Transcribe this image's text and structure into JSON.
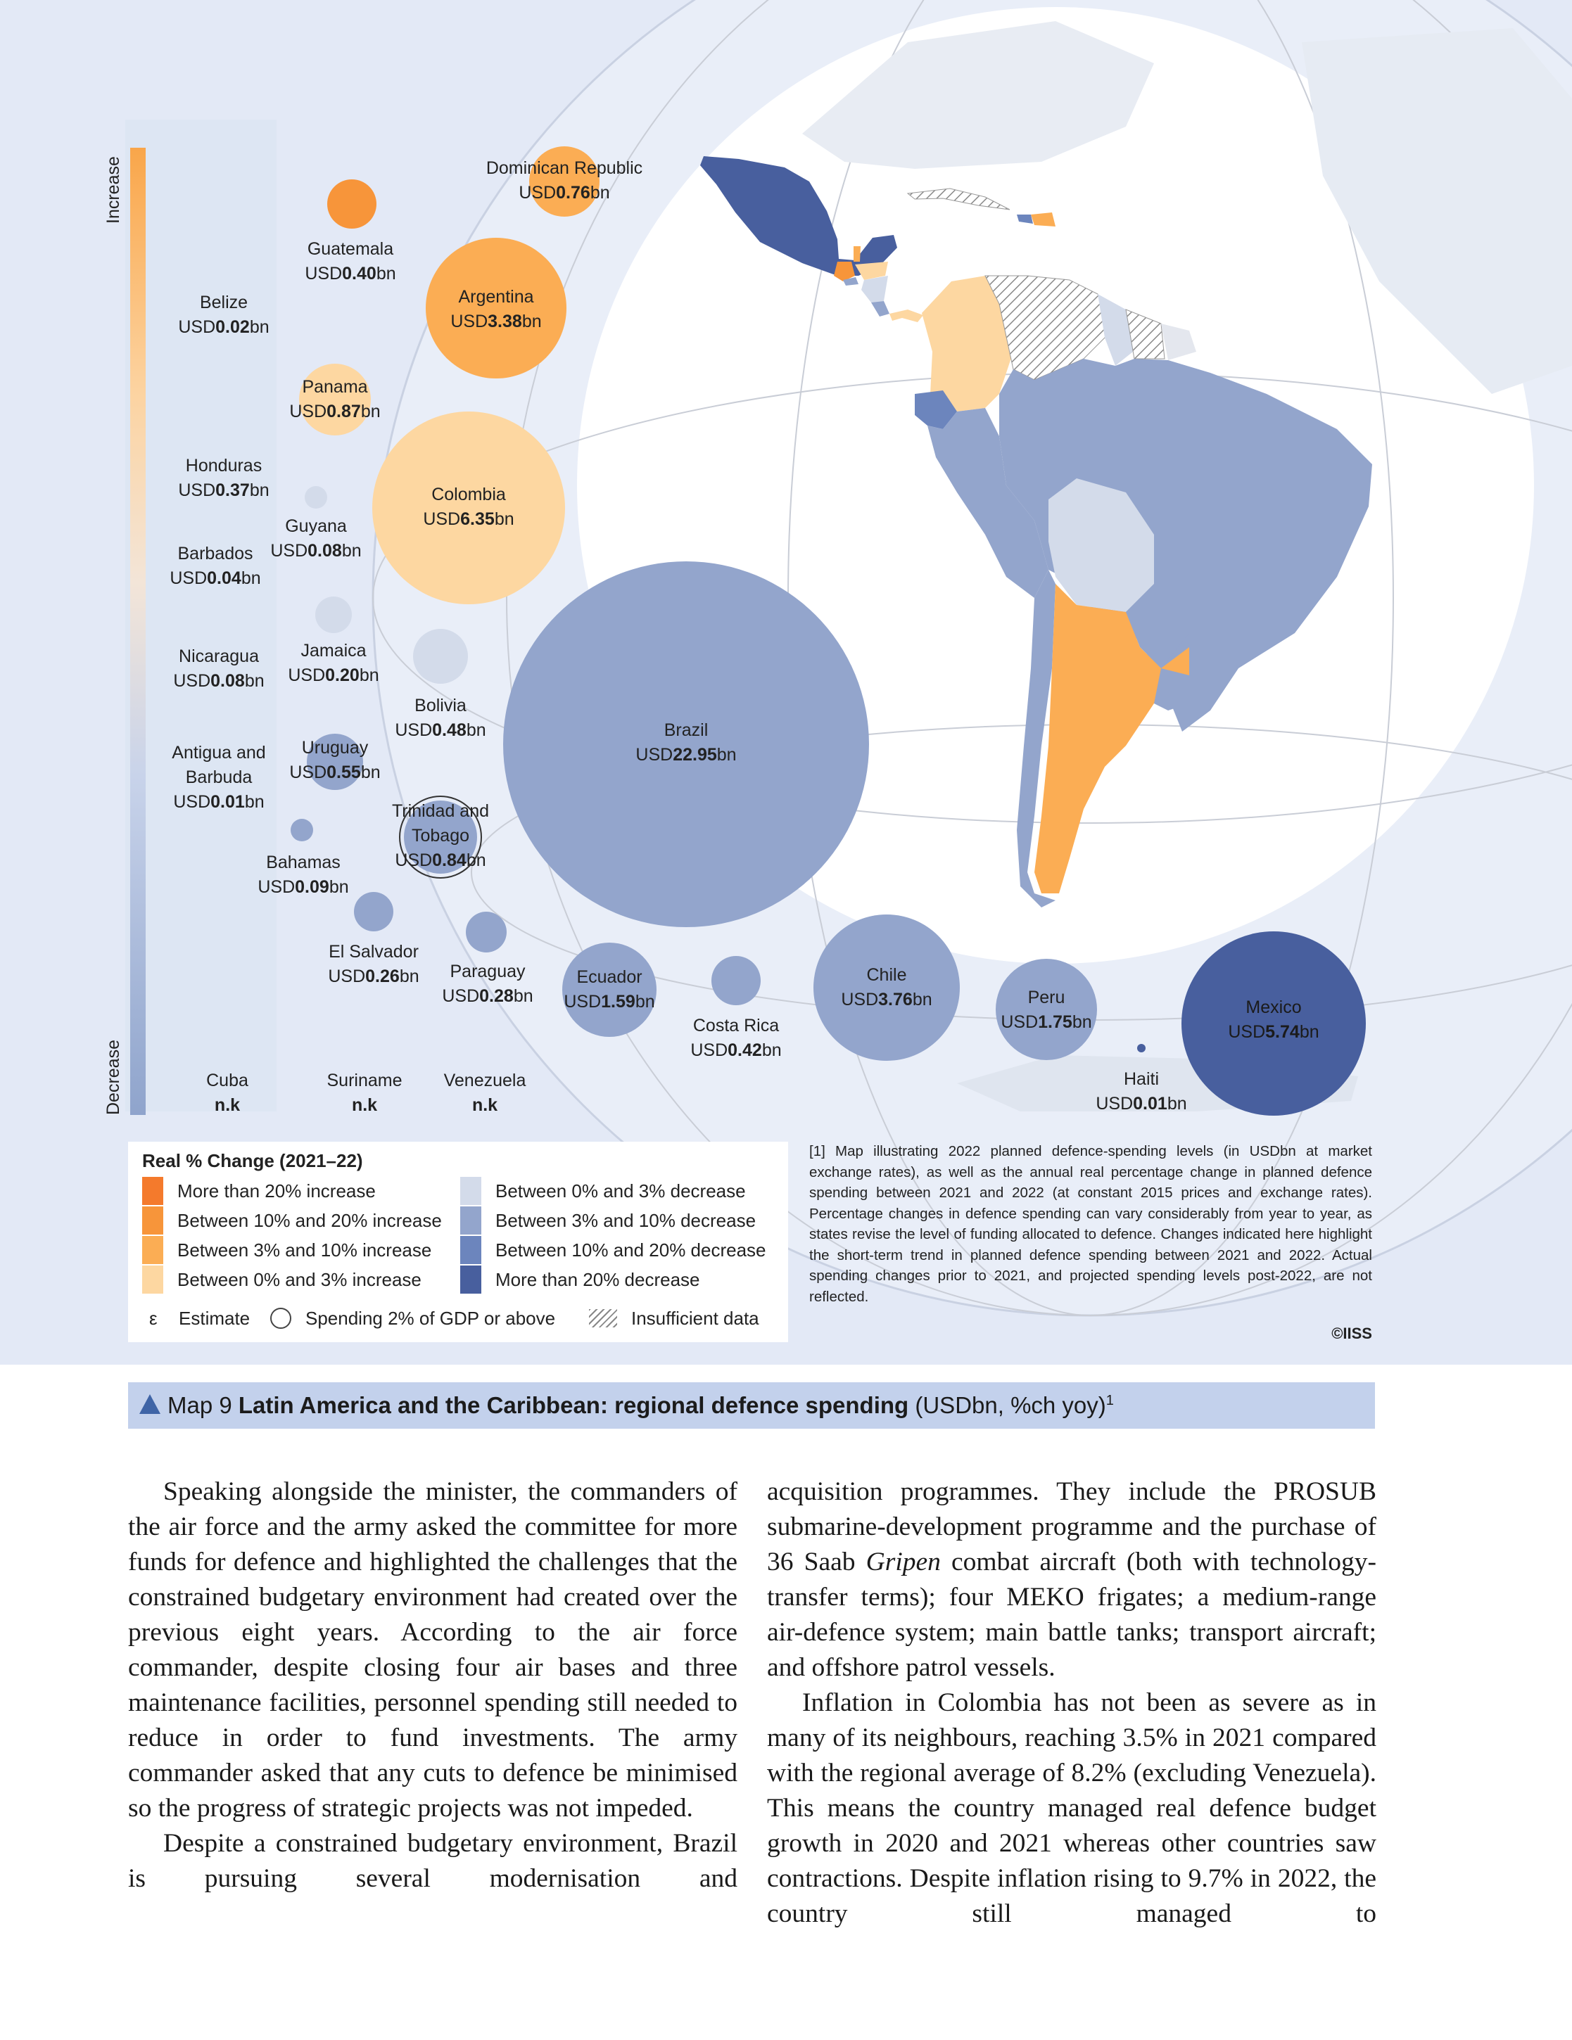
{
  "scale": {
    "increase_label": "Increase",
    "decrease_label": "Decrease"
  },
  "colors": {
    "inc_gt20": "#f47a2c",
    "inc_10_20": "#f7953a",
    "inc_3_10": "#fbad54",
    "inc_0_3": "#fdd7a1",
    "dec_0_3": "#d3dbea",
    "dec_3_10": "#93a5cc",
    "dec_10_20": "#6c85bd",
    "dec_gt20": "#485f9e",
    "background": "#e3e9f6",
    "caption_bar": "#c3d1ec"
  },
  "chart_data": {
    "type": "bubble-map",
    "title": "Latin America and the Caribbean: regional defence spending",
    "units": "USDbn, %ch yoy",
    "countries": [
      {
        "name": "Dominican Republic",
        "prefix": "USD",
        "value": "0.76",
        "unit": "bn",
        "category": "inc_3_10"
      },
      {
        "name": "Guatemala",
        "prefix": "USD",
        "value": "0.40",
        "unit": "bn",
        "category": "inc_10_20"
      },
      {
        "name": "Argentina",
        "prefix": "USD",
        "value": "3.38",
        "unit": "bn",
        "category": "inc_3_10"
      },
      {
        "name": "Belize",
        "prefix": "USD",
        "value": "0.02",
        "unit": "bn",
        "category": "inc_3_10"
      },
      {
        "name": "Panama",
        "prefix": "USD",
        "value": "0.87",
        "unit": "bn",
        "category": "inc_0_3"
      },
      {
        "name": "Honduras",
        "prefix": "USD",
        "value": "0.37",
        "unit": "bn",
        "category": "inc_0_3"
      },
      {
        "name": "Colombia",
        "prefix": "USD",
        "value": "6.35",
        "unit": "bn",
        "category": "inc_0_3"
      },
      {
        "name": "Guyana",
        "prefix": "USD",
        "value": "0.08",
        "unit": "bn",
        "category": "dec_0_3"
      },
      {
        "name": "Barbados",
        "prefix": "USD",
        "value": "0.04",
        "unit": "bn",
        "category": "dec_0_3"
      },
      {
        "name": "Jamaica",
        "prefix": "USD",
        "value": "0.20",
        "unit": "bn",
        "category": "dec_0_3"
      },
      {
        "name": "Nicaragua",
        "prefix": "USD",
        "value": "0.08",
        "unit": "bn",
        "category": "dec_0_3"
      },
      {
        "name": "Bolivia",
        "prefix": "USD",
        "value": "0.48",
        "unit": "bn",
        "category": "dec_0_3"
      },
      {
        "name": "Brazil",
        "prefix": "USD",
        "value": "22.95",
        "unit": "bn",
        "category": "dec_3_10"
      },
      {
        "name": "Antigua and Barbuda",
        "prefix": "USD",
        "value": "0.01",
        "unit": "bn",
        "category": "dec_3_10"
      },
      {
        "name": "Uruguay",
        "prefix": "USD",
        "value": "0.55",
        "unit": "bn",
        "category": "dec_3_10"
      },
      {
        "name": "Trinidad and Tobago",
        "prefix": "USD",
        "value": "0.84",
        "unit": "bn",
        "category": "dec_3_10",
        "gdp2pct": true
      },
      {
        "name": "Bahamas",
        "prefix": "USD",
        "value": "0.09",
        "unit": "bn",
        "category": "dec_3_10"
      },
      {
        "name": "El Salvador",
        "prefix": "USD",
        "value": "0.26",
        "unit": "bn",
        "category": "dec_3_10"
      },
      {
        "name": "Paraguay",
        "prefix": "USD",
        "value": "0.28",
        "unit": "bn",
        "category": "dec_3_10"
      },
      {
        "name": "Ecuador",
        "prefix": "USD",
        "value": "1.59",
        "unit": "bn",
        "category": "dec_3_10"
      },
      {
        "name": "Costa Rica",
        "prefix": "USD",
        "value": "0.42",
        "unit": "bn",
        "category": "dec_3_10"
      },
      {
        "name": "Chile",
        "prefix": "USD",
        "value": "3.76",
        "unit": "bn",
        "category": "dec_3_10"
      },
      {
        "name": "Peru",
        "prefix": "USD",
        "value": "1.75",
        "unit": "bn",
        "category": "dec_3_10"
      },
      {
        "name": "Mexico",
        "prefix": "USD",
        "value": "5.74",
        "unit": "bn",
        "category": "dec_gt20"
      },
      {
        "name": "Haiti",
        "prefix": "USD",
        "value": "0.01",
        "unit": "bn",
        "category": "dec_10_20"
      },
      {
        "name": "Cuba",
        "value": "n.k"
      },
      {
        "name": "Suriname",
        "value": "n.k"
      },
      {
        "name": "Venezuela",
        "value": "n.k"
      }
    ]
  },
  "legend": {
    "title": "Real % Change (2021–22)",
    "increase_items": [
      {
        "label": "More than 20% increase",
        "category": "inc_gt20"
      },
      {
        "label": "Between 10% and 20% increase",
        "category": "inc_10_20"
      },
      {
        "label": "Between 3% and 10% increase",
        "category": "inc_3_10"
      },
      {
        "label": "Between 0% and 3% increase",
        "category": "inc_0_3"
      }
    ],
    "decrease_items": [
      {
        "label": "Between 0% and 3% decrease",
        "category": "dec_0_3"
      },
      {
        "label": "Between 3% and 10% decrease",
        "category": "dec_3_10"
      },
      {
        "label": "Between 10% and 20% decrease",
        "category": "dec_10_20"
      },
      {
        "label": "More than 20% decrease",
        "category": "dec_gt20"
      }
    ],
    "estimate_symbol": "ε",
    "estimate_label": "Estimate",
    "gdp_label": "Spending 2% of GDP or above",
    "insufficient_label": "Insufficient data"
  },
  "footnote": "[1] Map illustrating 2022 planned defence-spending levels (in USDbn at market exchange rates), as well as the annual real percentage change in planned defence spending between 2021 and 2022 (at constant 2015 prices and exchange rates). Percentage changes in defence spending can vary considerably from year to year, as states revise the level of funding allocated to defence. Changes indicated here highlight the short-term trend in planned defence spending between 2021 and 2022. Actual spending changes prior to 2021, and projected spending levels post-2022, are not reflected.",
  "copyright": "©IISS",
  "caption": {
    "prefix": "Map 9",
    "title": "Latin America and the Caribbean: regional defence spending",
    "suffix": "(USDbn, %ch yoy)",
    "note": "1"
  },
  "body": {
    "left": [
      "Speaking alongside the minister, the commanders of the air force and the army asked the committee for more funds for defence and highlighted the challenges that the constrained budgetary environment had created over the previous eight years.  According to the air force commander, despite closing four air bases and three maintenance facilities, personnel spending still needed to reduce in order to fund investments. The army commander asked that any cuts to defence be minimised so the progress of strategic projects was not impeded.",
      "Despite a constrained budgetary environment, Brazil is pursuing several modernisation and"
    ],
    "right_p1_a": "acquisition programmes. They include the PROSUB submarine-development programme and the purchase of 36 Saab",
    "right_p1_italic": "Gripen",
    "right_p1_b": "combat aircraft (both with technology-transfer terms); four MEKO frigates; a medium-range air-defence system; main battle tanks; transport aircraft; and offshore patrol vessels.",
    "right_p2": "Inflation in Colombia has not been as severe as in many of its neighbours, reaching 3.5% in 2021 compared with the regional average of 8.2% (excluding Venezuela). This means the country managed real defence budget growth in 2020 and 2021 whereas other countries saw contractions. Despite inflation rising to 9.7% in 2022, the country still managed to"
  }
}
